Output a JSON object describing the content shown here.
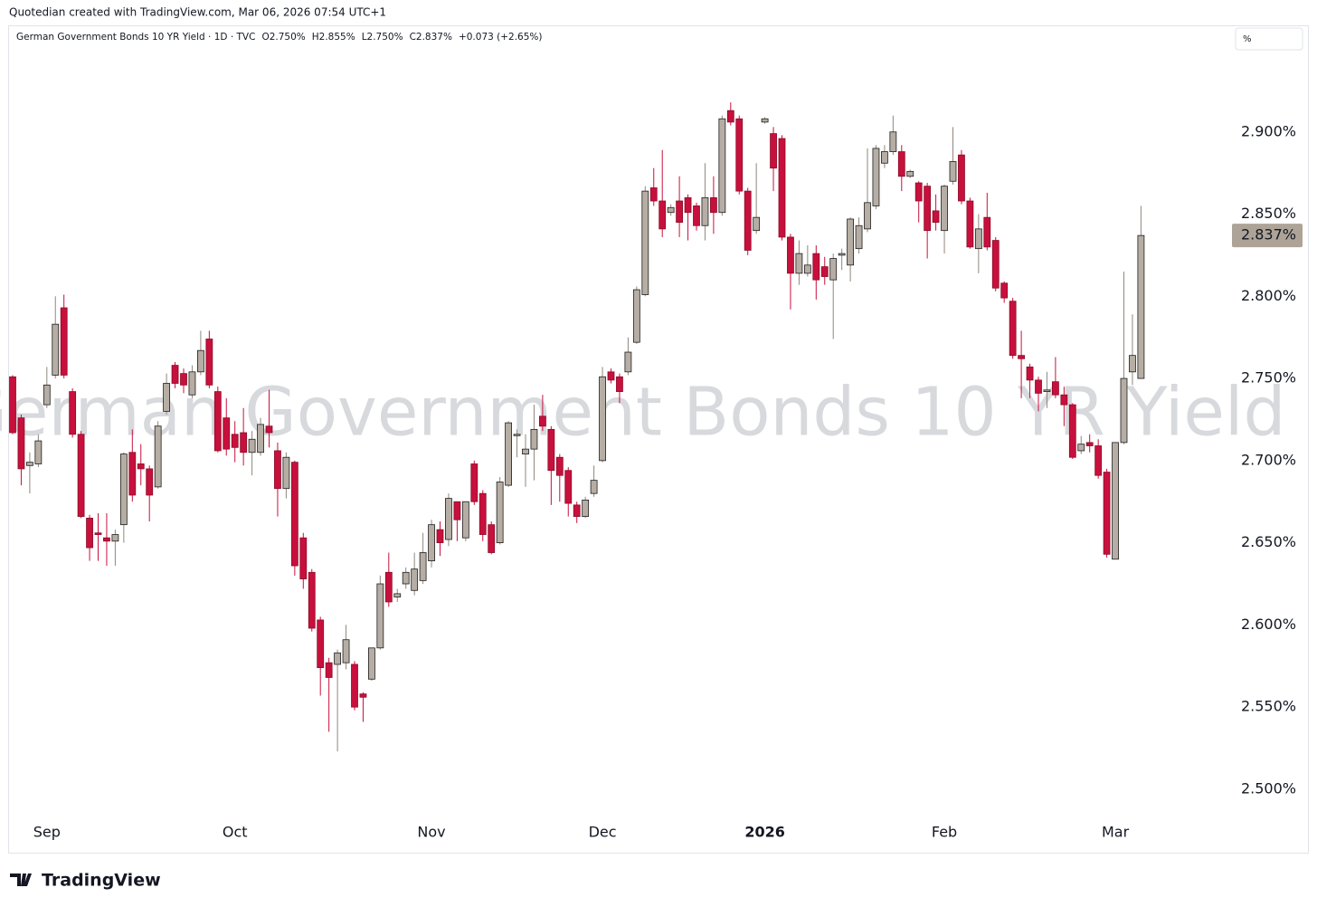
{
  "header": {
    "credit": "Quotedian created with TradingView.com, Mar 06, 2026 07:54 UTC+1",
    "legend": [
      "German Government Bonds 10 YR Yield · 1D · TVC",
      "O2.750%",
      "H2.855%",
      "L2.750%",
      "C2.837%",
      "+0.073 (+2.65%)"
    ],
    "unit_button": "%"
  },
  "footer": {
    "logo": "TradingView"
  },
  "chart_data": {
    "type": "candlestick",
    "title": "German Government Bonds 10 YR Yield",
    "categories": [
      null,
      null,
      null,
      null,
      "Sep",
      null,
      null,
      null,
      null,
      null,
      null,
      null,
      null,
      null,
      null,
      null,
      null,
      null,
      null,
      null,
      null,
      null,
      null,
      null,
      null,
      null,
      "Oct",
      null,
      null,
      null,
      null,
      null,
      null,
      null,
      null,
      null,
      null,
      null,
      null,
      null,
      null,
      null,
      null,
      null,
      null,
      null,
      null,
      null,
      null,
      "Nov",
      null,
      null,
      null,
      null,
      null,
      null,
      null,
      null,
      null,
      null,
      null,
      null,
      null,
      null,
      null,
      null,
      null,
      null,
      null,
      "Dec",
      null,
      null,
      null,
      null,
      null,
      null,
      null,
      null,
      null,
      null,
      null,
      null,
      null,
      null,
      null,
      null,
      null,
      null,
      "2026",
      null,
      null,
      null,
      null,
      null,
      null,
      null,
      null,
      null,
      null,
      null,
      null,
      null,
      null,
      null,
      null,
      null,
      null,
      null,
      null,
      "Feb",
      null,
      null,
      null,
      null,
      null,
      null,
      null,
      null,
      null,
      null,
      null,
      null,
      null,
      null,
      null,
      null,
      null,
      null,
      null,
      "Mar",
      null,
      null,
      null
    ],
    "bold_categories": [
      "2026"
    ],
    "open": [
      2.751,
      2.726,
      2.697,
      2.698,
      2.734,
      2.752,
      2.793,
      2.742,
      2.716,
      2.665,
      2.656,
      2.653,
      2.651,
      2.661,
      2.705,
      2.698,
      2.695,
      2.684,
      2.73,
      2.758,
      2.753,
      2.74,
      2.754,
      2.774,
      2.742,
      2.726,
      2.716,
      2.717,
      2.705,
      2.705,
      2.721,
      2.706,
      2.683,
      2.699,
      2.653,
      2.632,
      2.603,
      2.577,
      2.576,
      2.577,
      2.576,
      2.558,
      2.567,
      2.586,
      2.632,
      2.617,
      2.625,
      2.621,
      2.627,
      2.639,
      2.658,
      2.652,
      2.675,
      2.653,
      2.698,
      2.68,
      2.661,
      2.65,
      2.685,
      2.716,
      2.704,
      2.707,
      2.727,
      2.719,
      2.702,
      2.694,
      2.673,
      2.666,
      2.68,
      2.7,
      2.754,
      2.751,
      2.754,
      2.772,
      2.801,
      2.866,
      2.858,
      2.851,
      2.858,
      2.86,
      2.855,
      2.843,
      2.86,
      2.851,
      2.913,
      2.908,
      2.864,
      2.84,
      2.906,
      2.899,
      2.896,
      2.836,
      2.814,
      2.814,
      2.826,
      2.818,
      2.81,
      2.825,
      2.819,
      2.829,
      2.841,
      2.855,
      2.881,
      2.888,
      2.888,
      2.873,
      2.869,
      2.867,
      2.852,
      2.84,
      2.87,
      2.886,
      2.858,
      2.829,
      2.848,
      2.834,
      2.808,
      2.797,
      2.764,
      2.757,
      2.749,
      2.742,
      2.748,
      2.74,
      2.734,
      2.706,
      2.711,
      2.709,
      2.693,
      2.64,
      2.711,
      2.754,
      2.75
    ],
    "high": [
      2.752,
      2.728,
      2.705,
      2.716,
      2.757,
      2.8,
      2.801,
      2.744,
      2.718,
      2.667,
      2.668,
      2.668,
      2.658,
      2.705,
      2.719,
      2.71,
      2.697,
      2.724,
      2.753,
      2.76,
      2.756,
      2.758,
      2.779,
      2.779,
      2.745,
      2.738,
      2.724,
      2.732,
      2.718,
      2.726,
      2.743,
      2.711,
      2.705,
      2.7,
      2.656,
      2.634,
      2.605,
      2.58,
      2.585,
      2.6,
      2.578,
      2.559,
      2.586,
      2.63,
      2.644,
      2.622,
      2.635,
      2.644,
      2.656,
      2.664,
      2.663,
      2.68,
      2.675,
      2.675,
      2.7,
      2.682,
      2.663,
      2.69,
      2.724,
      2.719,
      2.716,
      2.734,
      2.74,
      2.721,
      2.704,
      2.696,
      2.675,
      2.678,
      2.697,
      2.757,
      2.756,
      2.753,
      2.775,
      2.806,
      2.867,
      2.878,
      2.889,
      2.856,
      2.873,
      2.862,
      2.857,
      2.881,
      2.873,
      2.91,
      2.918,
      2.91,
      2.866,
      2.881,
      2.909,
      2.903,
      2.898,
      2.838,
      2.834,
      2.831,
      2.831,
      2.824,
      2.826,
      2.829,
      2.848,
      2.848,
      2.89,
      2.892,
      2.892,
      2.91,
      2.892,
      2.877,
      2.87,
      2.869,
      2.862,
      2.868,
      2.903,
      2.889,
      2.86,
      2.85,
      2.863,
      2.836,
      2.809,
      2.799,
      2.779,
      2.759,
      2.751,
      2.754,
      2.763,
      2.745,
      2.735,
      2.715,
      2.716,
      2.713,
      2.695,
      2.711,
      2.815,
      2.789,
      2.855
    ],
    "low": [
      2.716,
      2.685,
      2.68,
      2.696,
      2.732,
      2.75,
      2.75,
      2.714,
      2.665,
      2.639,
      2.639,
      2.636,
      2.636,
      2.65,
      2.675,
      2.685,
      2.663,
      2.683,
      2.728,
      2.744,
      2.741,
      2.738,
      2.752,
      2.744,
      2.705,
      2.703,
      2.699,
      2.697,
      2.691,
      2.703,
      2.708,
      2.666,
      2.677,
      2.63,
      2.622,
      2.596,
      2.557,
      2.535,
      2.523,
      2.573,
      2.548,
      2.541,
      2.566,
      2.585,
      2.611,
      2.614,
      2.622,
      2.618,
      2.625,
      2.635,
      2.642,
      2.648,
      2.651,
      2.651,
      2.673,
      2.651,
      2.643,
      2.649,
      2.684,
      2.702,
      2.684,
      2.688,
      2.718,
      2.673,
      2.675,
      2.666,
      2.662,
      2.665,
      2.678,
      2.699,
      2.747,
      2.735,
      2.752,
      2.771,
      2.8,
      2.855,
      2.836,
      2.849,
      2.836,
      2.834,
      2.84,
      2.834,
      2.838,
      2.849,
      2.904,
      2.862,
      2.825,
      2.838,
      2.905,
      2.864,
      2.834,
      2.792,
      2.807,
      2.812,
      2.798,
      2.807,
      2.774,
      2.816,
      2.809,
      2.826,
      2.839,
      2.853,
      2.878,
      2.886,
      2.864,
      2.872,
      2.845,
      2.823,
      2.84,
      2.826,
      2.868,
      2.856,
      2.829,
      2.814,
      2.828,
      2.803,
      2.796,
      2.762,
      2.738,
      2.738,
      2.73,
      2.732,
      2.738,
      2.721,
      2.701,
      2.704,
      2.705,
      2.689,
      2.641,
      2.64,
      2.71,
      2.746,
      2.75
    ],
    "close": [
      2.717,
      2.695,
      2.699,
      2.712,
      2.746,
      2.783,
      2.752,
      2.716,
      2.666,
      2.647,
      2.655,
      2.651,
      2.655,
      2.704,
      2.679,
      2.695,
      2.679,
      2.721,
      2.747,
      2.747,
      2.746,
      2.754,
      2.767,
      2.746,
      2.706,
      2.707,
      2.708,
      2.705,
      2.713,
      2.722,
      2.717,
      2.683,
      2.702,
      2.636,
      2.628,
      2.598,
      2.574,
      2.568,
      2.583,
      2.591,
      2.55,
      2.556,
      2.586,
      2.625,
      2.614,
      2.619,
      2.632,
      2.634,
      2.644,
      2.661,
      2.65,
      2.677,
      2.664,
      2.675,
      2.675,
      2.655,
      2.644,
      2.687,
      2.723,
      2.716,
      2.707,
      2.719,
      2.721,
      2.694,
      2.691,
      2.674,
      2.666,
      2.676,
      2.688,
      2.751,
      2.749,
      2.742,
      2.766,
      2.804,
      2.864,
      2.858,
      2.841,
      2.854,
      2.845,
      2.851,
      2.843,
      2.86,
      2.851,
      2.908,
      2.906,
      2.864,
      2.828,
      2.848,
      2.908,
      2.878,
      2.836,
      2.814,
      2.826,
      2.819,
      2.81,
      2.812,
      2.823,
      2.826,
      2.847,
      2.843,
      2.857,
      2.89,
      2.888,
      2.9,
      2.873,
      2.876,
      2.858,
      2.84,
      2.845,
      2.867,
      2.882,
      2.858,
      2.83,
      2.841,
      2.83,
      2.805,
      2.799,
      2.764,
      2.762,
      2.749,
      2.741,
      2.743,
      2.74,
      2.734,
      2.702,
      2.71,
      2.709,
      2.691,
      2.643,
      2.711,
      2.75,
      2.764,
      2.837
    ],
    "up_color": "#b6aea4",
    "down_color": "#c8103c",
    "up_border": "#1e1e1e",
    "ylim": [
      2.4625,
      2.95
    ],
    "yticks": [
      {
        "value": 2.5,
        "label": "2.500%"
      },
      {
        "value": 2.55,
        "label": "2.550%"
      },
      {
        "value": 2.6,
        "label": "2.600%"
      },
      {
        "value": 2.65,
        "label": "2.650%"
      },
      {
        "value": 2.7,
        "label": "2.700%"
      },
      {
        "value": 2.75,
        "label": "2.750%"
      },
      {
        "value": 2.8,
        "label": "2.800%"
      },
      {
        "value": 2.85,
        "label": "2.850%"
      },
      {
        "value": 2.9,
        "label": "2.900%"
      }
    ],
    "grid": false,
    "last_price": {
      "value": 2.837,
      "label": "2.837%"
    },
    "last_price_color": "#ada397"
  }
}
